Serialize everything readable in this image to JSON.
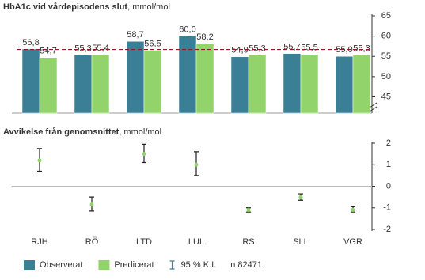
{
  "chart_data": [
    {
      "type": "bar",
      "title": "HbA1c vid vårdepisodens slut",
      "title_unit": ", mmol/mol",
      "categories": [
        "RJH",
        "RÖ",
        "LTD",
        "LUL",
        "RS",
        "SLL",
        "VGR"
      ],
      "series": [
        {
          "name": "Observerat",
          "color": "#3b7f97",
          "values": [
            56.8,
            55.3,
            58.7,
            60.0,
            54.9,
            55.7,
            55.0
          ],
          "value_labels": [
            "56,8",
            "55,3",
            "58,7",
            "60,0",
            "54,9",
            "55,7",
            "55,0"
          ]
        },
        {
          "name": "Predicerat",
          "color": "#93d36b",
          "values": [
            54.7,
            55.4,
            56.5,
            58.2,
            55.3,
            55.5,
            55.3
          ],
          "value_labels": [
            "54,7",
            "55,4",
            "56,5",
            "58,2",
            "55,3",
            "55,5",
            "55,3"
          ]
        }
      ],
      "reference_line": 56.7,
      "reference_color": "#8b1a2b",
      "ylim": [
        41,
        65
      ],
      "yticks": [
        45,
        50,
        55,
        60,
        65
      ]
    },
    {
      "type": "errorbar",
      "title": "Avvikelse från genomsnittet",
      "title_unit": ", mmol/mol",
      "values": [
        1.2,
        -0.85,
        1.5,
        1.0,
        -1.1,
        -0.5,
        -1.1
      ],
      "lower": [
        0.7,
        -1.15,
        1.1,
        0.5,
        -1.2,
        -0.65,
        -1.2
      ],
      "upper": [
        1.75,
        -0.5,
        1.95,
        1.6,
        -1.0,
        -0.35,
        -0.95
      ],
      "color": "#93d36b",
      "ci_label": "95 % K.I.",
      "note": "n 82471",
      "ylim": [
        -2,
        2
      ],
      "yticks": [
        -2,
        -1,
        0,
        1,
        2
      ]
    }
  ]
}
